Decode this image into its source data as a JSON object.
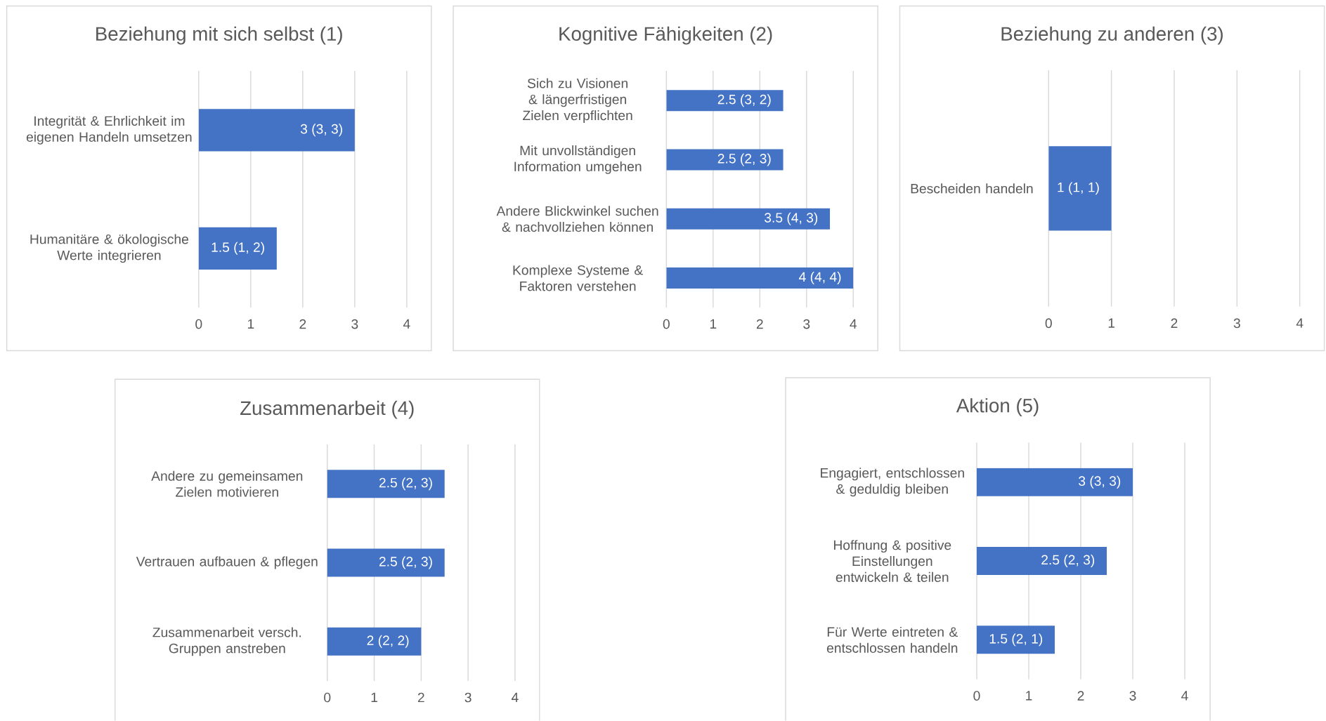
{
  "chart_data": [
    {
      "type": "bar",
      "orientation": "horizontal",
      "title": "Beziehung mit sich selbst (1)",
      "categories": [
        "Integrität & Ehrlichkeit im eigenen Handeln umsetzen",
        "Humanitäre & ökologische Werte integrieren"
      ],
      "values": [
        3,
        1.5
      ],
      "value_labels": [
        "3 (3, 3)",
        "1.5 (1, 2)"
      ],
      "color": "#4472c4",
      "xlim": [
        0,
        4
      ],
      "xticks": [
        0,
        1,
        2,
        3,
        4
      ],
      "grid": "x"
    },
    {
      "type": "bar",
      "orientation": "horizontal",
      "title": "Kognitive Fähigkeiten (2)",
      "categories": [
        "Sich zu Visionen & längerfristigen Zielen verpflichten",
        "Mit unvollständigen Information umgehen",
        "Andere Blickwinkel suchen & nachvollziehen können",
        "Komplexe Systeme & Faktoren verstehen"
      ],
      "values": [
        2.5,
        2.5,
        3.5,
        4
      ],
      "value_labels": [
        "2.5 (3, 2)",
        "2.5 (2, 3)",
        "3.5 (4, 3)",
        "4 (4, 4)"
      ],
      "color": "#4472c4",
      "xlim": [
        0,
        4
      ],
      "xticks": [
        0,
        1,
        2,
        3,
        4
      ],
      "grid": "x"
    },
    {
      "type": "bar",
      "orientation": "horizontal",
      "title": "Beziehung zu anderen (3)",
      "categories": [
        "Bescheiden handeln"
      ],
      "values": [
        1
      ],
      "value_labels": [
        "1 (1, 1)"
      ],
      "color": "#4472c4",
      "xlim": [
        0,
        4
      ],
      "xticks": [
        0,
        1,
        2,
        3,
        4
      ],
      "grid": "x"
    },
    {
      "type": "bar",
      "orientation": "horizontal",
      "title": "Zusammenarbeit (4)",
      "categories": [
        "Andere zu gemeinsamen Zielen motivieren",
        "Vertrauen aufbauen & pflegen",
        "Zusammenarbeit versch. Gruppen anstreben"
      ],
      "values": [
        2.5,
        2.5,
        2
      ],
      "value_labels": [
        "2.5 (2, 3)",
        "2.5 (2, 3)",
        "2 (2, 2)"
      ],
      "color": "#4472c4",
      "xlim": [
        0,
        4
      ],
      "xticks": [
        0,
        1,
        2,
        3,
        4
      ],
      "grid": "x"
    },
    {
      "type": "bar",
      "orientation": "horizontal",
      "title": "Aktion (5)",
      "categories": [
        "Engagiert, entschlossen & geduldig bleiben",
        "Hoffnung & positive Einstellungen entwickeln & teilen",
        "Für Werte eintreten & entschlossen handeln"
      ],
      "values": [
        3,
        2.5,
        1.5
      ],
      "value_labels": [
        "3 (3, 3)",
        "2.5 (2, 3)",
        "1.5 (2, 1)"
      ],
      "color": "#4472c4",
      "xlim": [
        0,
        4
      ],
      "xticks": [
        0,
        1,
        2,
        3,
        4
      ],
      "grid": "x"
    }
  ]
}
